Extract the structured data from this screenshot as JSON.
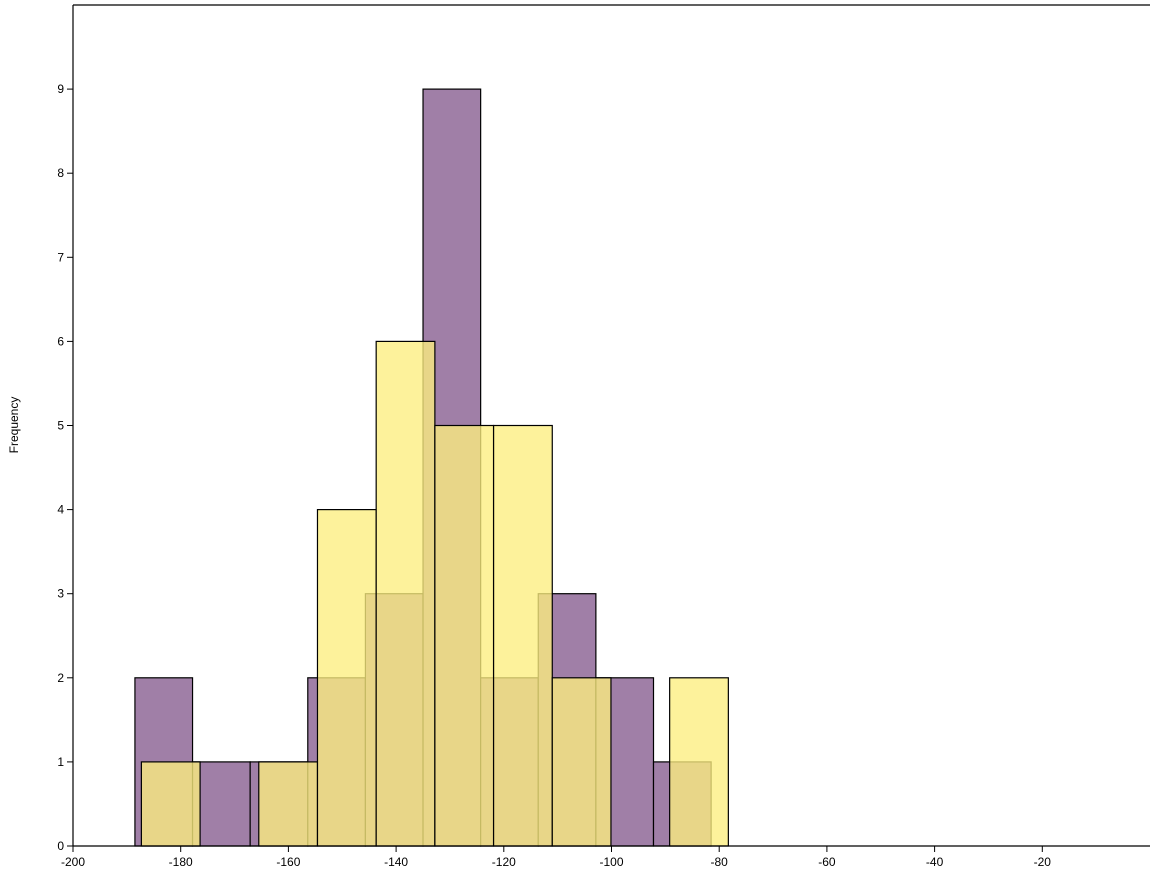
{
  "chart_data": {
    "type": "bar",
    "subtype": "overlapping-histogram",
    "title": "",
    "xlabel": "",
    "ylabel": "Frequency",
    "xlim": [
      -200,
      0
    ],
    "ylim": [
      0,
      10
    ],
    "x_ticks": [
      -200,
      -180,
      -160,
      -140,
      -120,
      -100,
      -80,
      -60,
      -40,
      -20
    ],
    "y_ticks": [
      0,
      1,
      2,
      3,
      4,
      5,
      6,
      7,
      8,
      9
    ],
    "grid": false,
    "legend": "none",
    "series": [
      {
        "color": "#a07fa7",
        "bins": [
          {
            "x0": -188.5,
            "x1": -177.8,
            "count": 2
          },
          {
            "x0": -177.8,
            "x1": -167.1,
            "count": 1
          },
          {
            "x0": -167.1,
            "x1": -156.4,
            "count": 1
          },
          {
            "x0": -156.4,
            "x1": -145.7,
            "count": 2
          },
          {
            "x0": -145.7,
            "x1": -135.0,
            "count": 3
          },
          {
            "x0": -135.0,
            "x1": -124.3,
            "count": 9
          },
          {
            "x0": -124.3,
            "x1": -113.6,
            "count": 2
          },
          {
            "x0": -113.6,
            "x1": -102.9,
            "count": 3
          },
          {
            "x0": -102.9,
            "x1": -92.2,
            "count": 2
          },
          {
            "x0": -92.2,
            "x1": -81.5,
            "count": 1
          }
        ]
      },
      {
        "color": "#fdee7f",
        "bins": [
          {
            "x0": -187.3,
            "x1": -176.4,
            "count": 1
          },
          {
            "x0": -176.4,
            "x1": -165.5,
            "count": 0
          },
          {
            "x0": -165.5,
            "x1": -154.6,
            "count": 1
          },
          {
            "x0": -154.6,
            "x1": -143.7,
            "count": 4
          },
          {
            "x0": -143.7,
            "x1": -132.8,
            "count": 6
          },
          {
            "x0": -132.8,
            "x1": -121.9,
            "count": 5
          },
          {
            "x0": -121.9,
            "x1": -111.0,
            "count": 5
          },
          {
            "x0": -111.0,
            "x1": -100.1,
            "count": 2
          },
          {
            "x0": -100.1,
            "x1": -89.2,
            "count": 0
          },
          {
            "x0": -89.2,
            "x1": -78.3,
            "count": 2
          }
        ]
      }
    ]
  }
}
